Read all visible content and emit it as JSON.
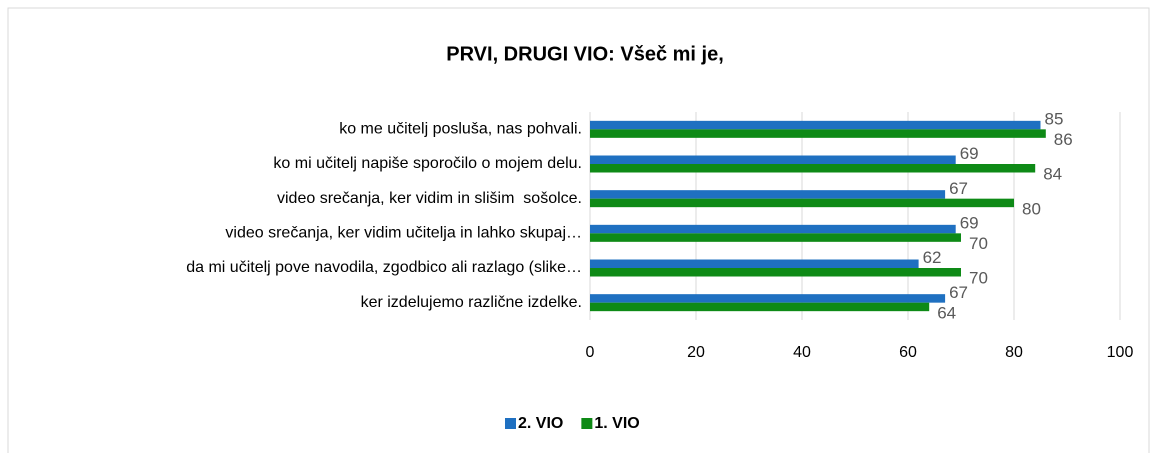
{
  "chart_data": {
    "type": "hbar",
    "title": "PRVI, DRUGI VIO: Všeč mi je,",
    "categories": [
      "ko me učitelj posluša, nas pohvali.",
      "ko mi učitelj napiše sporočilo o mojem delu.",
      "video srečanja, ker vidim in slišim  sošolce.",
      "video srečanja, ker vidim učitelja in lahko skupaj…",
      "da mi učitelj pove navodila, zgodbico ali razlago (slike…",
      "ker izdelujemo različne izdelke."
    ],
    "series": [
      {
        "name": "2. VIO",
        "color": "#1f70c1",
        "values": [
          85,
          69,
          67,
          69,
          62,
          67
        ]
      },
      {
        "name": "1. VIO",
        "color": "#0e8a16",
        "values": [
          86,
          84,
          80,
          70,
          70,
          64
        ]
      }
    ],
    "xlim": [
      0,
      100
    ],
    "xticks": [
      0,
      20,
      40,
      60,
      80,
      100
    ],
    "grid": true,
    "legend": "bottom"
  }
}
